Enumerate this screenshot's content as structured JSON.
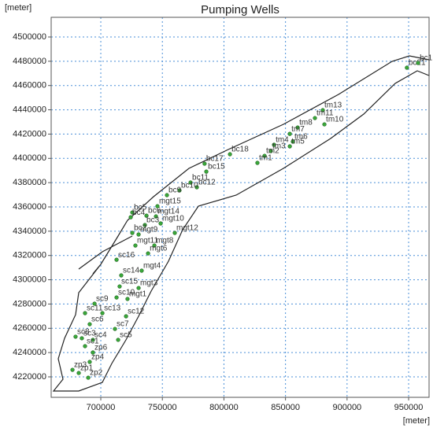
{
  "chart_data": {
    "type": "scatter",
    "title": "Pumping Wells",
    "xlabel": "[meter]",
    "ylabel": "[meter]",
    "x": [
      948600,
      957700,
      880300,
      873900,
      881600,
      859900,
      853500,
      856000,
      853500,
      840700,
      838100,
      833000,
      827200,
      804900,
      784300,
      785700,
      778000,
      772900,
      763900,
      753700,
      725600,
      724300,
      737100,
      746000,
      744800,
      735800,
      748600,
      725600,
      730700,
      760100,
      728100,
      743500,
      738400,
      712800,
      733200,
      716600,
      715300,
      730700,
      712800,
      721700,
      694900,
      687200,
      701300,
      720500,
      691000,
      711500,
      679500,
      684600,
      693600,
      714100,
      687200,
      693600,
      691000,
      677000,
      682100,
      689800
    ],
    "series": [
      {
        "color": "#3aa83a",
        "values": [
          4474700,
          4478600,
          4439700,
          4433200,
          4428000,
          4425400,
          4420200,
          4413800,
          4409900,
          4411200,
          4406000,
          4402100,
          4396300,
          4403400,
          4395600,
          4389100,
          4376200,
          4380100,
          4373600,
          4369700,
          4355400,
          4351500,
          4352800,
          4360600,
          4352200,
          4345100,
          4346400,
          4338600,
          4337300,
          4338600,
          4328200,
          4328200,
          4321700,
          4316500,
          4307500,
          4303600,
          4294500,
          4293200,
          4285400,
          4284200,
          4280300,
          4272500,
          4272500,
          4269900,
          4263400,
          4259500,
          4253100,
          4251800,
          4250500,
          4250500,
          4245300,
          4240100,
          4232300,
          4225800,
          4223200,
          4219300
        ],
        "point_labels": [
          "bc21",
          "bc1",
          "tm13",
          "tm11",
          "tm10",
          "tm8",
          "tm7",
          "tm6",
          "tm5",
          "tm4",
          "tm3",
          "tm2",
          "tm1",
          "bc18",
          "bc17",
          "bc15",
          "bc12",
          "bc11",
          "bc10",
          "bc9",
          "bc5",
          "bc4",
          "bc6",
          "mgt15",
          "mgt14",
          "bc3",
          "mgt10",
          "bc2",
          "mgt9",
          "mgt12",
          "mgt11",
          "mgt8",
          "mgt6",
          "sc16",
          "mgt4",
          "sc14",
          "sc15",
          "mgt3",
          "sc10",
          "mgt1",
          "sc9",
          "sc11",
          "sc13",
          "sc12",
          "sc6",
          "sc7",
          "sc8",
          "sc3",
          "sc4",
          "sc5",
          "sc1",
          "zp6",
          "zp4",
          "zp3",
          "zp1",
          "zp2"
        ]
      }
    ],
    "xlim": [
      659700,
      966600
    ],
    "ylim": [
      4203150,
      4516200
    ],
    "xticks": [
      700000,
      750000,
      800000,
      850000,
      900000,
      950000
    ],
    "yticks": [
      4220000,
      4240000,
      4260000,
      4280000,
      4300000,
      4320000,
      4340000,
      4360000,
      4380000,
      4400000,
      4420000,
      4440000,
      4460000,
      4480000,
      4500000
    ],
    "grid": true
  }
}
